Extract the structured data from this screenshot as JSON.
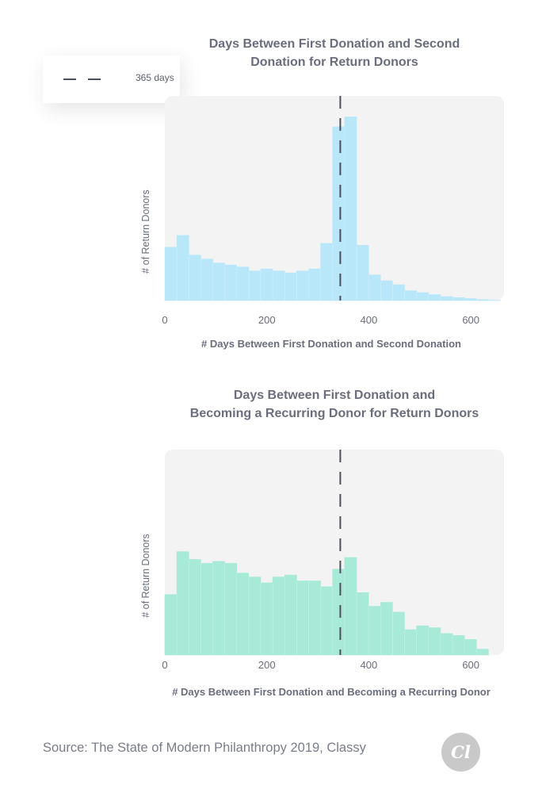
{
  "legend": {
    "label": "365 days"
  },
  "source": "Source: The State of Modern Philanthropy 2019, Classy",
  "logo_text": "Cl",
  "chart_data": [
    {
      "type": "bar",
      "title_line1": "Days Between First Donation and Second",
      "title_line2": "Donation for Return Donors",
      "xlabel": "# Days Between First Donation and Second Donation",
      "ylabel": "# of Return Donors",
      "xlim": [
        0,
        665
      ],
      "ylim": [
        0,
        100
      ],
      "bin_width": 23.5,
      "xticks": [
        0,
        200,
        400,
        600
      ],
      "color": "#b8e7f9",
      "reference_line": {
        "x": 344,
        "label": "365 days"
      },
      "values": [
        27,
        33,
        23,
        21,
        19,
        18,
        17,
        15,
        16,
        15,
        14,
        15,
        16,
        29,
        88,
        93,
        28,
        13,
        10,
        8,
        5,
        4,
        3,
        2,
        1.5,
        1,
        0.5,
        0.2
      ]
    },
    {
      "type": "bar",
      "title_line1": "Days Between First Donation and",
      "title_line2": "Becoming a Recurring Donor for Return Donors",
      "xlabel": "# Days Between First Donation and Becoming a Recurring Donor",
      "ylabel": "# of Return Donors",
      "xlim": [
        0,
        665
      ],
      "ylim": [
        0,
        100
      ],
      "bin_width": 23.5,
      "xticks": [
        0,
        200,
        400,
        600
      ],
      "color": "#a8ead8",
      "reference_line": {
        "x": 344,
        "label": "365 days"
      },
      "values": [
        31,
        53,
        49,
        47,
        48,
        47,
        42,
        40,
        37,
        40,
        41,
        38,
        38,
        35,
        44,
        50,
        32,
        25,
        27,
        22,
        13,
        15,
        14,
        11,
        10,
        8,
        3
      ]
    }
  ]
}
